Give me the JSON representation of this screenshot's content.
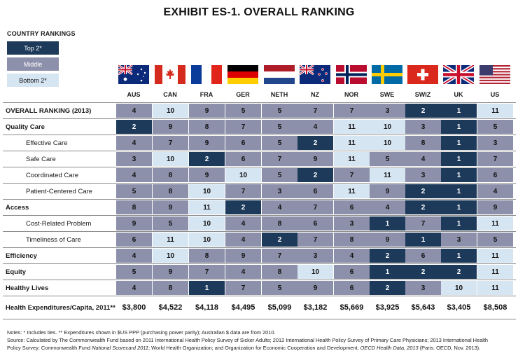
{
  "title": "EXHIBIT ES-1. OVERALL RANKING",
  "legend": {
    "title": "COUNTRY RANKINGS",
    "items": [
      {
        "label": "Top 2*",
        "color": "#1d3a5a"
      },
      {
        "label": "Middle",
        "color": "#8c90aa"
      },
      {
        "label": "Bottom 2*",
        "color": "#d6e5f2"
      }
    ]
  },
  "countries": [
    "AUS",
    "CAN",
    "FRA",
    "GER",
    "NETH",
    "NZ",
    "NOR",
    "SWE",
    "SWIZ",
    "UK",
    "US"
  ],
  "flag_icons": [
    "australia-flag-icon",
    "canada-flag-icon",
    "france-flag-icon",
    "germany-flag-icon",
    "netherlands-flag-icon",
    "new-zealand-flag-icon",
    "norway-flag-icon",
    "sweden-flag-icon",
    "switzerland-flag-icon",
    "uk-flag-icon",
    "us-flag-icon"
  ],
  "rows": [
    {
      "label": "OVERALL RANKING (2013)",
      "style": "bold",
      "values": [
        "4",
        "10",
        "9",
        "5",
        "5",
        "7",
        "7",
        "3",
        "2",
        "1",
        "11"
      ],
      "tiers": [
        "m",
        "b",
        "m",
        "m",
        "m",
        "m",
        "m",
        "m",
        "t",
        "t",
        "b"
      ]
    },
    {
      "label": "Quality Care",
      "style": "bold",
      "values": [
        "2",
        "9",
        "8",
        "7",
        "5",
        "4",
        "11",
        "10",
        "3",
        "1",
        "5"
      ],
      "tiers": [
        "t",
        "m",
        "m",
        "m",
        "m",
        "m",
        "b",
        "b",
        "m",
        "t",
        "m"
      ]
    },
    {
      "label": "Effective Care",
      "style": "sub",
      "values": [
        "4",
        "7",
        "9",
        "6",
        "5",
        "2",
        "11",
        "10",
        "8",
        "1",
        "3"
      ],
      "tiers": [
        "m",
        "m",
        "m",
        "m",
        "m",
        "t",
        "b",
        "b",
        "m",
        "t",
        "m"
      ]
    },
    {
      "label": "Safe Care",
      "style": "sub",
      "values": [
        "3",
        "10",
        "2",
        "6",
        "7",
        "9",
        "11",
        "5",
        "4",
        "1",
        "7"
      ],
      "tiers": [
        "m",
        "b",
        "t",
        "m",
        "m",
        "m",
        "b",
        "m",
        "m",
        "t",
        "m"
      ]
    },
    {
      "label": "Coordinated Care",
      "style": "sub",
      "values": [
        "4",
        "8",
        "9",
        "10",
        "5",
        "2",
        "7",
        "11",
        "3",
        "1",
        "6"
      ],
      "tiers": [
        "m",
        "m",
        "m",
        "b",
        "m",
        "t",
        "m",
        "b",
        "m",
        "t",
        "m"
      ]
    },
    {
      "label": "Patient-Centered Care",
      "style": "sub",
      "values": [
        "5",
        "8",
        "10",
        "7",
        "3",
        "6",
        "11",
        "9",
        "2",
        "1",
        "4"
      ],
      "tiers": [
        "m",
        "m",
        "b",
        "m",
        "m",
        "m",
        "b",
        "m",
        "t",
        "t",
        "m"
      ]
    },
    {
      "label": "Access",
      "style": "bold",
      "values": [
        "8",
        "9",
        "11",
        "2",
        "4",
        "7",
        "6",
        "4",
        "2",
        "1",
        "9"
      ],
      "tiers": [
        "m",
        "m",
        "b",
        "t",
        "m",
        "m",
        "m",
        "m",
        "t",
        "t",
        "m"
      ]
    },
    {
      "label": "Cost-Related Problem",
      "style": "sub",
      "values": [
        "9",
        "5",
        "10",
        "4",
        "8",
        "6",
        "3",
        "1",
        "7",
        "1",
        "11"
      ],
      "tiers": [
        "m",
        "m",
        "b",
        "m",
        "m",
        "m",
        "m",
        "t",
        "m",
        "t",
        "b"
      ]
    },
    {
      "label": "Timeliness of Care",
      "style": "sub",
      "values": [
        "6",
        "11",
        "10",
        "4",
        "2",
        "7",
        "8",
        "9",
        "1",
        "3",
        "5"
      ],
      "tiers": [
        "m",
        "b",
        "b",
        "m",
        "t",
        "m",
        "m",
        "m",
        "t",
        "m",
        "m"
      ]
    },
    {
      "label": "Efficiency",
      "style": "bold",
      "values": [
        "4",
        "10",
        "8",
        "9",
        "7",
        "3",
        "4",
        "2",
        "6",
        "1",
        "11"
      ],
      "tiers": [
        "m",
        "b",
        "m",
        "m",
        "m",
        "m",
        "m",
        "t",
        "m",
        "t",
        "b"
      ]
    },
    {
      "label": "Equity",
      "style": "bold",
      "values": [
        "5",
        "9",
        "7",
        "4",
        "8",
        "10",
        "6",
        "1",
        "2",
        "2",
        "11"
      ],
      "tiers": [
        "m",
        "m",
        "m",
        "m",
        "m",
        "b",
        "m",
        "t",
        "t",
        "t",
        "b"
      ]
    },
    {
      "label": "Healthy Lives",
      "style": "bold",
      "values": [
        "4",
        "8",
        "1",
        "7",
        "5",
        "9",
        "6",
        "2",
        "3",
        "10",
        "11"
      ],
      "tiers": [
        "m",
        "m",
        "t",
        "m",
        "m",
        "m",
        "m",
        "t",
        "m",
        "b",
        "b"
      ]
    }
  ],
  "expenditures": {
    "label": "Health Expenditures/Capita, 2011**",
    "values": [
      "$3,800",
      "$4,522",
      "$4,118",
      "$4,495",
      "$5,099",
      "$3,182",
      "$5,669",
      "$3,925",
      "$5,643",
      "$3,405",
      "$8,508"
    ]
  },
  "notes": {
    "line1": "Notes: * Includes ties. ** Expenditures shown in $US PPP (purchasing power parity); Australian $ data are from 2010.",
    "line2": "Source: Calculated by The Commonwealth Fund based on 2011 International Health Policy Survey of Sicker Adults; 2012 International Health Policy Survey of Primary Care Physicians; 2013 International Health",
    "line3a": "Policy Survey; Commonwealth Fund ",
    "line3b": "National Scorecard 2011",
    "line3c": "; World Health Organization; and Organization for Economic Cooperation and Development, ",
    "line3d": "OECD Health Data, 2013",
    "line3e": " (Paris: OECD, Nov. 2013)."
  }
}
